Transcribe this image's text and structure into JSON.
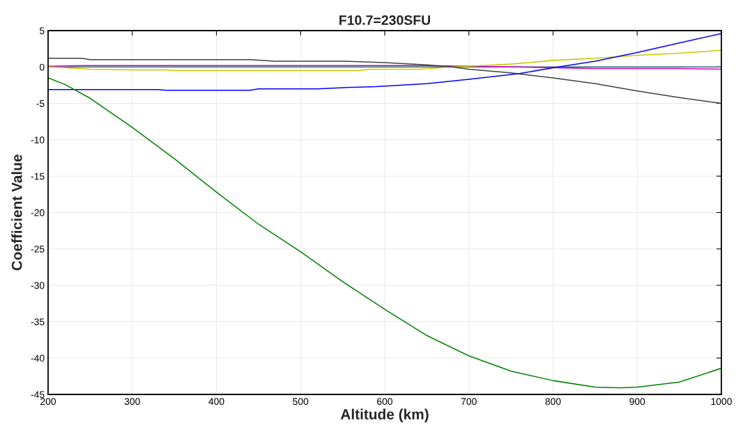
{
  "chart_data": {
    "type": "line",
    "title": "F10.7=230SFU",
    "xlabel": "Altitude (km)",
    "ylabel": "Coefficient Value",
    "xlim": [
      200,
      1000
    ],
    "xticks": [
      200,
      300,
      400,
      500,
      600,
      700,
      800,
      900,
      1000
    ],
    "ylim": [
      -45,
      5
    ],
    "yticks": [
      -45,
      -40,
      -35,
      -30,
      -25,
      -20,
      -15,
      -10,
      -5,
      0,
      5
    ],
    "grid": true,
    "legend": false,
    "marker": "none",
    "line_style": "solid",
    "series": [
      {
        "color": "#2f6f6f",
        "x": [
          200,
          400,
          600,
          800,
          1000
        ],
        "values": [
          0,
          0,
          0,
          0,
          0
        ]
      },
      {
        "color": "#cc00cc",
        "x": [
          200,
          240,
          450,
          650,
          700,
          760,
          850,
          950,
          1000
        ],
        "values": [
          0.1,
          0.2,
          0.2,
          0.2,
          0.1,
          0.0,
          -0.2,
          -0.2,
          -0.3
        ]
      },
      {
        "color": "#c8c800",
        "x": [
          200,
          220,
          250,
          300,
          340,
          350,
          570,
          580,
          640,
          680,
          700,
          750,
          800,
          850,
          900,
          950,
          1000
        ],
        "values": [
          0,
          -0.1,
          -0.3,
          -0.4,
          -0.4,
          -0.5,
          -0.5,
          -0.3,
          -0.3,
          0,
          0.1,
          0.4,
          0.9,
          1.2,
          1.6,
          1.9,
          2.3
        ]
      },
      {
        "color": "#404040",
        "x": [
          200,
          240,
          250,
          440,
          470,
          550,
          600,
          650,
          680,
          700,
          750,
          800,
          850,
          900,
          950,
          1000
        ],
        "values": [
          1.2,
          1.2,
          1.0,
          1.0,
          0.8,
          0.8,
          0.6,
          0.3,
          0.0,
          -0.3,
          -0.8,
          -1.5,
          -2.3,
          -3.3,
          -4.2,
          -5.0
        ]
      },
      {
        "color": "#0000ff",
        "x": [
          200,
          220,
          330,
          340,
          440,
          450,
          520,
          560,
          590,
          650,
          700,
          722,
          760,
          801,
          850,
          900,
          950,
          1000
        ],
        "values": [
          -3.1,
          -3.1,
          -3.1,
          -3.2,
          -3.2,
          -3.0,
          -3.0,
          -2.8,
          -2.7,
          -2.3,
          -1.7,
          -1.4,
          -0.9,
          -0.1,
          0.8,
          2.0,
          3.3,
          4.6
        ]
      },
      {
        "color": "#008000",
        "x": [
          200,
          220,
          250,
          270,
          300,
          350,
          400,
          450,
          500,
          550,
          600,
          650,
          700,
          750,
          800,
          850,
          880,
          900,
          950,
          1000
        ],
        "values": [
          -1.5,
          -2.4,
          -4.3,
          -5.9,
          -8.3,
          -12.6,
          -17.2,
          -21.6,
          -25.4,
          -29.5,
          -33.3,
          -36.9,
          -39.7,
          -41.8,
          -43.1,
          -44.0,
          -44.1,
          -44.0,
          -43.3,
          -41.4
        ]
      }
    ]
  }
}
